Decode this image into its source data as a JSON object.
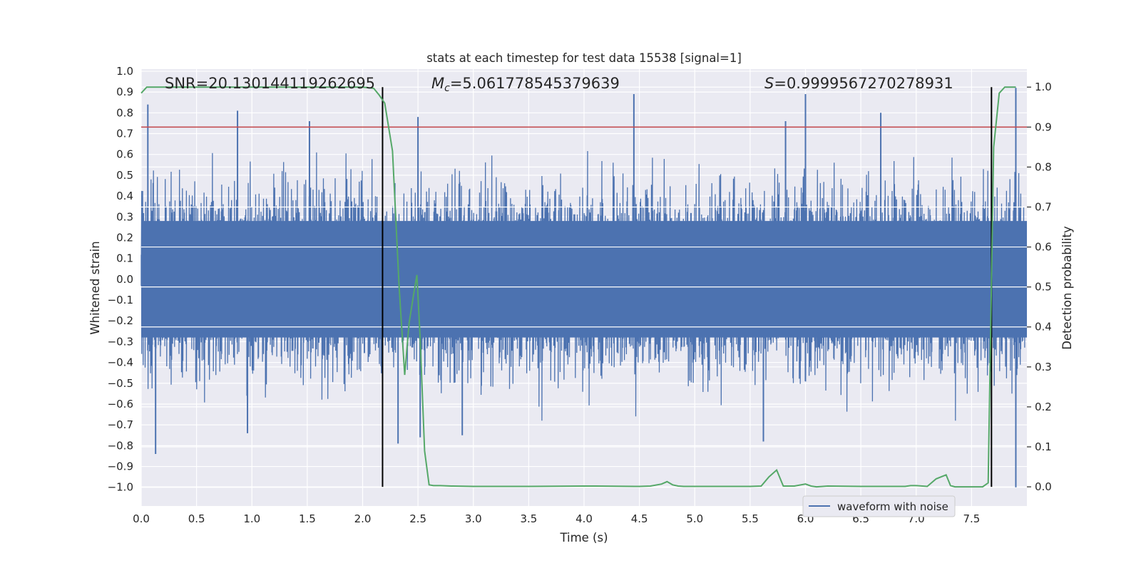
{
  "chart_data": {
    "type": "line",
    "title": "stats at each timestep for test data 15538 [signal=1]",
    "xlabel": "Time (s)",
    "ylabel_left": "Whitened strain",
    "ylabel_right": "Detection probability",
    "xlim": [
      0.0,
      8.0
    ],
    "ylim_left": [
      -1.09,
      1.01
    ],
    "ylim_right": [
      -0.048,
      1.045
    ],
    "x_ticks": [
      "0.0",
      "0.5",
      "1.0",
      "1.5",
      "2.0",
      "2.5",
      "3.0",
      "3.5",
      "4.0",
      "4.5",
      "5.0",
      "5.5",
      "6.0",
      "6.5",
      "7.0",
      "7.5"
    ],
    "x_tick_values": [
      0,
      0.5,
      1,
      1.5,
      2,
      2.5,
      3,
      3.5,
      4,
      4.5,
      5,
      5.5,
      6,
      6.5,
      7,
      7.5
    ],
    "y_left_ticks": [
      "1.0",
      "0.9",
      "0.8",
      "0.7",
      "0.6",
      "0.5",
      "0.4",
      "0.3",
      "0.2",
      "0.1",
      "0.0",
      "−0.1",
      "−0.2",
      "−0.3",
      "−0.4",
      "−0.5",
      "−0.6",
      "−0.7",
      "−0.8",
      "−0.9",
      "−1.0"
    ],
    "y_left_tick_values": [
      1.0,
      0.9,
      0.8,
      0.7,
      0.6,
      0.5,
      0.4,
      0.3,
      0.2,
      0.1,
      0.0,
      -0.1,
      -0.2,
      -0.3,
      -0.4,
      -0.5,
      -0.6,
      -0.7,
      -0.8,
      -0.9,
      -1.0
    ],
    "y_right_ticks": [
      "1.0",
      "0.9",
      "0.8",
      "0.7",
      "0.6",
      "0.5",
      "0.4",
      "0.3",
      "0.2",
      "0.1",
      "0.0"
    ],
    "y_right_tick_values": [
      1.0,
      0.9,
      0.8,
      0.7,
      0.6,
      0.5,
      0.4,
      0.3,
      0.2,
      0.1,
      0.0
    ],
    "grid": true,
    "annotations": {
      "snr": "SNR=20.130144119262695",
      "mc_symbol": "M",
      "mc_sub": "c",
      "mc_value": "=5.061778545379639",
      "s_symbol": "S",
      "s_value": "=0.9999567270278931"
    },
    "threshold_line": {
      "axis": "right",
      "y": 0.9,
      "color": "#c44e52"
    },
    "vertical_lines": {
      "x": [
        2.18,
        7.68
      ],
      "color": "#000000"
    },
    "legend": {
      "entries": [
        "waveform with noise"
      ],
      "placement": "lower-right"
    },
    "series": [
      {
        "name": "waveform with noise",
        "axis": "left",
        "color": "#4c72b0",
        "kind": "dense-noise",
        "sample_rate_hz": 2048,
        "typical_band": [
          -0.42,
          0.42
        ],
        "peaks_positive": [
          {
            "x": 0.06,
            "y": 0.84
          },
          {
            "x": 0.87,
            "y": 0.81
          },
          {
            "x": 1.52,
            "y": 0.76
          },
          {
            "x": 2.5,
            "y": 0.78
          },
          {
            "x": 4.45,
            "y": 0.89
          },
          {
            "x": 5.82,
            "y": 0.76
          },
          {
            "x": 6.0,
            "y": 0.89
          },
          {
            "x": 6.68,
            "y": 0.8
          },
          {
            "x": 7.9,
            "y": 0.92
          }
        ],
        "peaks_negative": [
          {
            "x": 0.13,
            "y": -0.84
          },
          {
            "x": 0.96,
            "y": -0.74
          },
          {
            "x": 2.32,
            "y": -0.79
          },
          {
            "x": 2.52,
            "y": -0.76
          },
          {
            "x": 2.9,
            "y": -0.75
          },
          {
            "x": 5.62,
            "y": -0.78
          },
          {
            "x": 7.9,
            "y": -1.0
          }
        ]
      },
      {
        "name": "",
        "axis": "right",
        "color": "#55a868",
        "x": [
          0.0,
          0.05,
          0.1,
          0.5,
          1.0,
          1.5,
          2.0,
          2.1,
          2.15,
          2.2,
          2.27,
          2.33,
          2.38,
          2.42,
          2.46,
          2.49,
          2.52,
          2.56,
          2.6,
          2.64,
          2.7,
          2.8,
          3.0,
          3.5,
          4.0,
          4.1,
          4.5,
          4.6,
          4.7,
          4.75,
          4.8,
          4.85,
          4.9,
          5.0,
          5.5,
          5.6,
          5.67,
          5.74,
          5.8,
          5.9,
          6.0,
          6.05,
          6.1,
          6.2,
          6.5,
          6.9,
          6.95,
          7.0,
          7.1,
          7.18,
          7.27,
          7.31,
          7.35,
          7.5,
          7.6,
          7.65,
          7.7,
          7.75,
          7.8,
          7.85,
          7.9
        ],
        "y": [
          0.985,
          1.0,
          1.0,
          1.0,
          1.0,
          1.0,
          1.0,
          0.997,
          0.98,
          0.96,
          0.84,
          0.5,
          0.28,
          0.41,
          0.48,
          0.53,
          0.37,
          0.09,
          0.005,
          0.003,
          0.003,
          0.002,
          0.001,
          0.001,
          0.002,
          0.002,
          0.001,
          0.002,
          0.007,
          0.013,
          0.005,
          0.002,
          0.001,
          0.001,
          0.001,
          0.002,
          0.025,
          0.042,
          0.002,
          0.002,
          0.007,
          0.002,
          0.0,
          0.002,
          0.001,
          0.001,
          0.003,
          0.003,
          0.001,
          0.02,
          0.03,
          0.003,
          0.0,
          0.0,
          0.0,
          0.01,
          0.85,
          0.985,
          1.0,
          1.0,
          1.0
        ]
      }
    ]
  }
}
